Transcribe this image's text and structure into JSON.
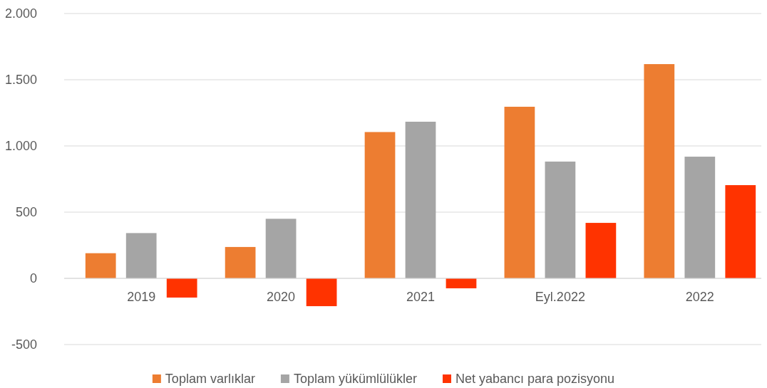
{
  "chart_data": {
    "type": "bar",
    "categories": [
      "2019",
      "2020",
      "2021",
      "Eyl.2022",
      "2022"
    ],
    "series": [
      {
        "name": "Toplam varlıklar",
        "color": "#ed7d31",
        "values": [
          190,
          237,
          1105,
          1296,
          1618
        ]
      },
      {
        "name": "Toplam yükümlülükler",
        "color": "#a5a5a5",
        "values": [
          342,
          450,
          1183,
          882,
          919
        ]
      },
      {
        "name": "Net yabancı para pozisyonu",
        "color": "#ff3300",
        "values": [
          -145,
          -210,
          -75,
          419,
          704
        ]
      }
    ],
    "ylim": [
      -500,
      2000
    ],
    "yticks": [
      {
        "value": -500,
        "label": "-500"
      },
      0,
      500,
      {
        "value": 1000,
        "label": "1.000"
      },
      {
        "value": 1500,
        "label": "1.500"
      },
      {
        "value": 2000,
        "label": "2.000"
      }
    ],
    "grid": "y",
    "legend": "bottom"
  }
}
